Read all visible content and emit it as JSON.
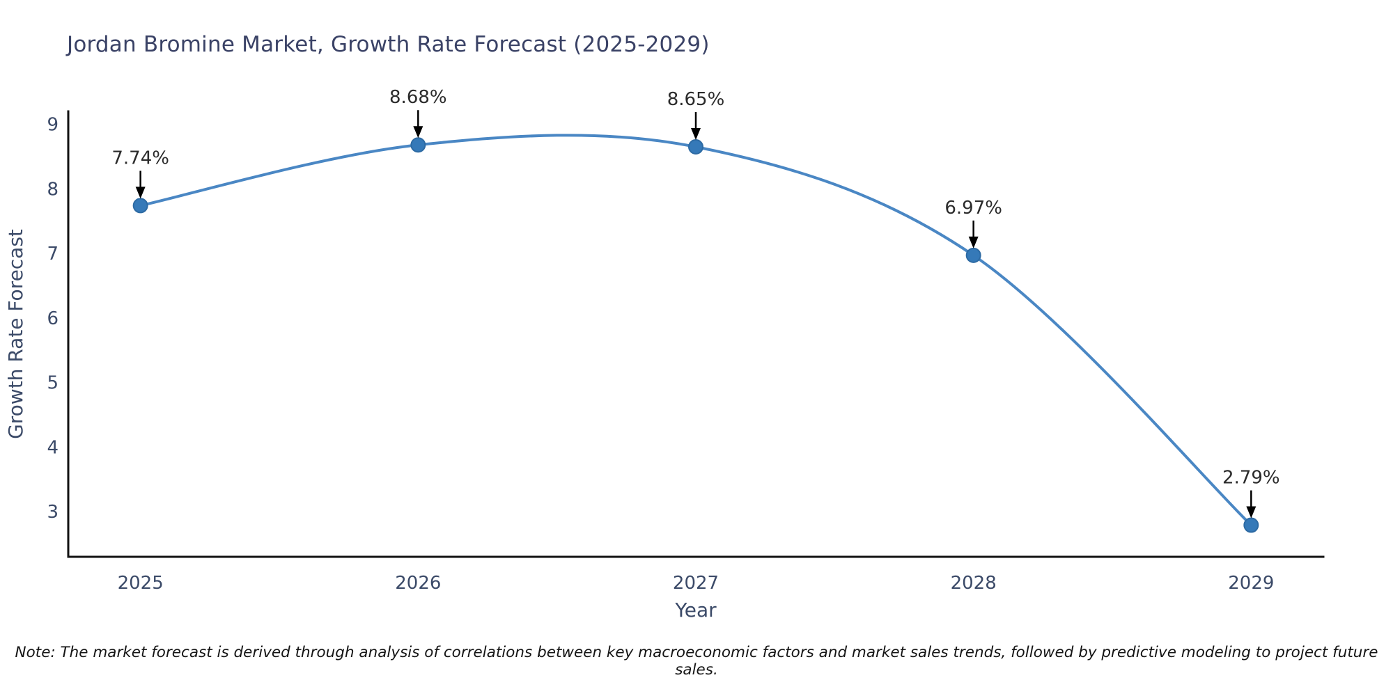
{
  "title": "Jordan Bromine Market, Growth Rate Forecast (2025-2029)",
  "note": "Note: The market forecast is derived through analysis of correlations between key macroeconomic factors and market sales trends, followed by predictive modeling to project future sales.",
  "chart_data": {
    "type": "line",
    "title": "Jordan Bromine Market, Growth Rate Forecast (2025-2029)",
    "xlabel": "Year",
    "ylabel": "Growth Rate Forecast",
    "x": [
      2025,
      2026,
      2027,
      2028,
      2029
    ],
    "y": [
      7.74,
      8.68,
      8.65,
      6.97,
      2.79
    ],
    "series": [
      {
        "name": "Growth Rate Forecast",
        "values": [
          7.74,
          8.68,
          8.65,
          6.97,
          2.79
        ]
      }
    ],
    "point_labels": [
      "7.74%",
      "8.68%",
      "8.65%",
      "6.97%",
      "2.79%"
    ],
    "x_tick_labels": [
      "2025",
      "2026",
      "2027",
      "2028",
      "2029"
    ],
    "y_tick_values": [
      3,
      4,
      5,
      6,
      7,
      8,
      9
    ],
    "xlim": [
      2024.74,
      2029.26
    ],
    "ylim": [
      2.3,
      9.2
    ],
    "grid": false,
    "legend": "none",
    "line_shape": "spline",
    "annotation_style": "value label with black down arrow onto marker",
    "colors": {
      "line": "#4a87c4",
      "marker_fill": "#3579b8",
      "marker_edge": "#2d6aa3",
      "axis": "#111111",
      "title_text": "#3a4266",
      "tick_text": "#3b4a68",
      "axis_label_text": "#3b4a68",
      "annotation_text": "#2b2b2b",
      "arrow": "#000000",
      "background": "#ffffff"
    }
  }
}
